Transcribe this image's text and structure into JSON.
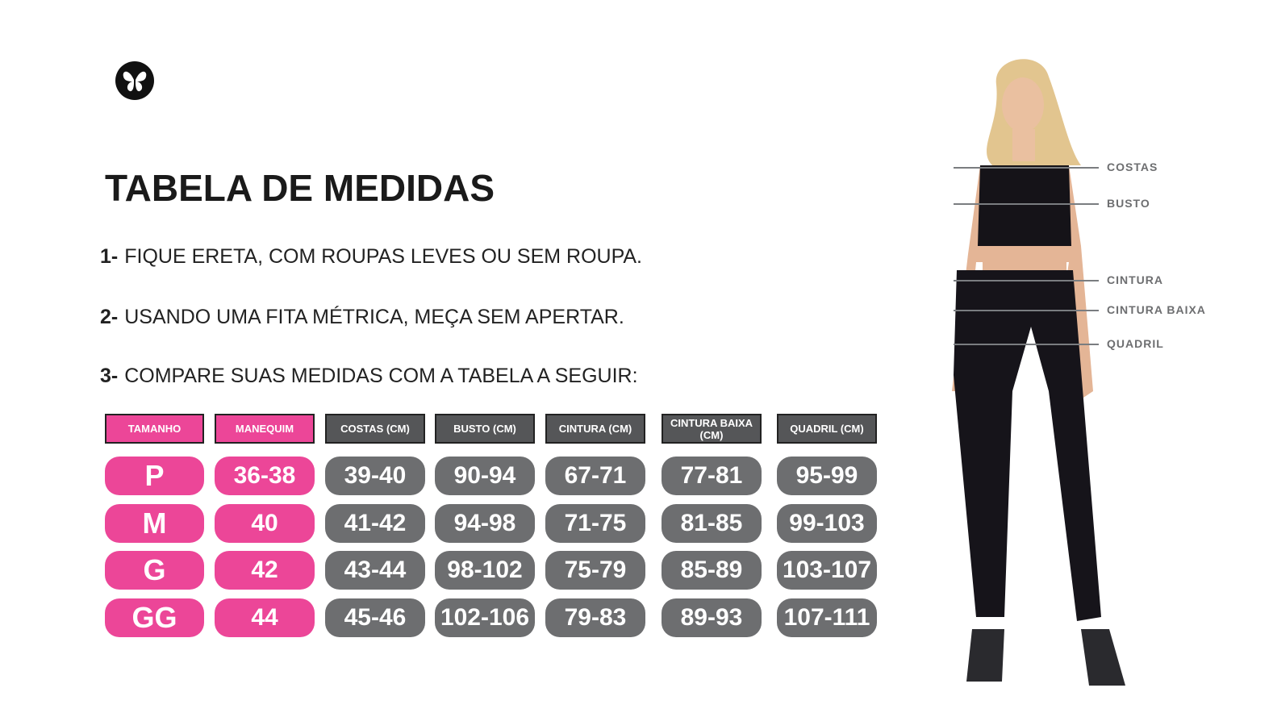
{
  "logo": {
    "icon": "butterfly-logo-icon"
  },
  "title": "TABELA DE MEDIDAS",
  "steps": [
    {
      "num": "1-",
      "text": "FIQUE ERETA, COM ROUPAS LEVES OU SEM ROUPA."
    },
    {
      "num": "2-",
      "text": "USANDO UMA FITA MÉTRICA, MEÇA SEM APERTAR."
    },
    {
      "num": "3-",
      "text": "COMPARE SUAS MEDIDAS COM A TABELA A SEGUIR:"
    }
  ],
  "table": {
    "headers": [
      "TAMANHO",
      "MANEQUIM",
      "COSTAS (CM)",
      "BUSTO (CM)",
      "CINTURA (CM)",
      "CINTURA BAIXA (CM)",
      "QUADRIL (CM)"
    ],
    "rows": [
      [
        "P",
        "36-38",
        "39-40",
        "90-94",
        "67-71",
        "77-81",
        "95-99"
      ],
      [
        "M",
        "40",
        "41-42",
        "94-98",
        "71-75",
        "81-85",
        "99-103"
      ],
      [
        "G",
        "42",
        "43-44",
        "98-102",
        "75-79",
        "85-89",
        "103-107"
      ],
      [
        "GG",
        "44",
        "45-46",
        "102-106",
        "79-83",
        "89-93",
        "107-111"
      ]
    ]
  },
  "measurements": [
    "COSTAS",
    "BUSTO",
    "CINTURA",
    "CINTURA BAIXA",
    "QUADRIL"
  ],
  "colors": {
    "pink": "#ec4698",
    "gray": "#6d6e70",
    "header_gray": "#555658"
  }
}
